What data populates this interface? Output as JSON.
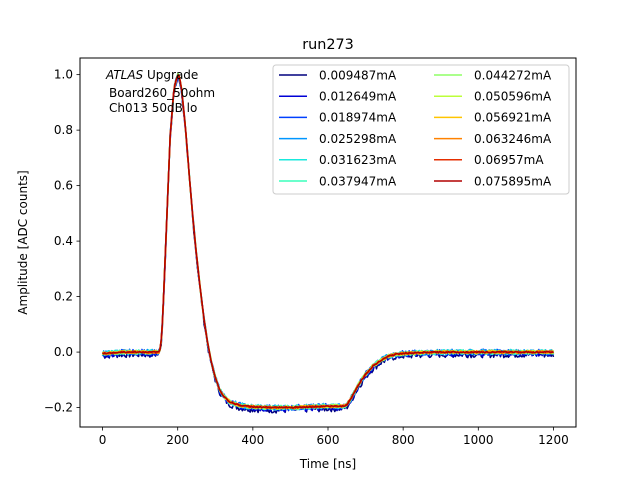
{
  "chart_data": {
    "type": "line",
    "title": "run273",
    "xlabel": "Time [ns]",
    "ylabel": "Amplitude [ADC counts]",
    "xlim": [
      -60,
      1260
    ],
    "ylim": [
      -0.27,
      1.06
    ],
    "xticks": [
      0,
      200,
      400,
      600,
      800,
      1000,
      1200
    ],
    "yticks": [
      -0.2,
      0.0,
      0.2,
      0.4,
      0.6,
      0.8,
      1.0
    ],
    "annotation": {
      "italic": "ATLAS",
      "line1_rest": " Upgrade",
      "line2": "Board260_50ohm",
      "line3": "Ch013 50dB lo"
    },
    "legend": {
      "loc": "upper right",
      "ncol": 2
    },
    "series": [
      {
        "name": "0.009487mA",
        "color": "#00007f"
      },
      {
        "name": "0.012649mA",
        "color": "#0000d6"
      },
      {
        "name": "0.018974mA",
        "color": "#0040ff"
      },
      {
        "name": "0.025298mA",
        "color": "#0096ff"
      },
      {
        "name": "0.031623mA",
        "color": "#19e9dd"
      },
      {
        "name": "0.037947mA",
        "color": "#3affbc"
      },
      {
        "name": "0.044272mA",
        "color": "#8fff66"
      },
      {
        "name": "0.050596mA",
        "color": "#bcff3a"
      },
      {
        "name": "0.056921mA",
        "color": "#ffc500"
      },
      {
        "name": "0.063246mA",
        "color": "#ff8200"
      },
      {
        "name": "0.06957mA",
        "color": "#e52e00"
      },
      {
        "name": "0.075895mA",
        "color": "#b20000"
      }
    ],
    "waveform": {
      "t": [
        0,
        50,
        100,
        140,
        150,
        155,
        160,
        170,
        180,
        190,
        200,
        205,
        210,
        220,
        230,
        240,
        250,
        260,
        270,
        280,
        290,
        300,
        310,
        320,
        330,
        340,
        360,
        380,
        400,
        450,
        500,
        550,
        600,
        640,
        650,
        660,
        680,
        700,
        720,
        740,
        760,
        780,
        800,
        850,
        900,
        1000,
        1100,
        1200
      ],
      "v": [
        -0.005,
        0.0,
        0.0,
        0.0,
        0.0,
        0.02,
        0.12,
        0.45,
        0.78,
        0.95,
        1.0,
        0.99,
        0.95,
        0.82,
        0.65,
        0.49,
        0.35,
        0.23,
        0.12,
        0.03,
        -0.04,
        -0.09,
        -0.13,
        -0.155,
        -0.17,
        -0.18,
        -0.19,
        -0.195,
        -0.197,
        -0.2,
        -0.2,
        -0.197,
        -0.195,
        -0.195,
        -0.19,
        -0.17,
        -0.12,
        -0.08,
        -0.05,
        -0.03,
        -0.015,
        -0.008,
        -0.005,
        -0.002,
        0.0,
        0.0,
        0.0,
        0.0
      ]
    }
  }
}
